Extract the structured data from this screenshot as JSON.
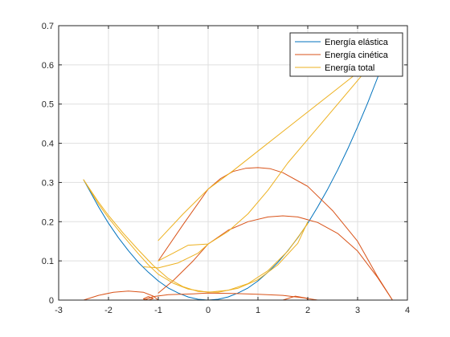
{
  "chart_data": {
    "type": "line",
    "title": "",
    "xlabel": "",
    "ylabel": "",
    "xlim": [
      -3,
      4
    ],
    "ylim": [
      0,
      0.7
    ],
    "grid": true,
    "legend_position": "top-right",
    "x_ticks": [
      -3,
      -2,
      -1,
      0,
      1,
      2,
      3,
      4
    ],
    "x_tick_labels": [
      "-3",
      "-2",
      "-1",
      "0",
      "1",
      "2",
      "3",
      "4"
    ],
    "y_ticks": [
      0,
      0.1,
      0.2,
      0.3,
      0.4,
      0.5,
      0.6,
      0.7
    ],
    "y_tick_labels": [
      "0",
      "0.1",
      "0.2",
      "0.3",
      "0.4",
      "0.5",
      "0.6",
      "0.7"
    ],
    "series": [
      {
        "name": "Energía elástica",
        "color": "#0072bd",
        "segments": [
          [
            [
              -2.5,
              0.307
            ],
            [
              -2.2,
              0.238
            ],
            [
              -2.0,
              0.196
            ],
            [
              -1.8,
              0.159
            ],
            [
              -1.6,
              0.126
            ],
            [
              -1.4,
              0.096
            ],
            [
              -1.2,
              0.071
            ],
            [
              -1.0,
              0.049
            ],
            [
              -0.8,
              0.031
            ],
            [
              -0.6,
              0.018
            ],
            [
              -0.4,
              0.008
            ],
            [
              -0.2,
              0.002
            ],
            [
              0.0,
              0.0
            ],
            [
              0.2,
              0.002
            ],
            [
              0.4,
              0.008
            ],
            [
              0.6,
              0.018
            ],
            [
              0.8,
              0.031
            ],
            [
              1.0,
              0.049
            ],
            [
              1.2,
              0.071
            ],
            [
              1.4,
              0.096
            ],
            [
              1.6,
              0.126
            ],
            [
              1.8,
              0.159
            ],
            [
              2.0,
              0.196
            ],
            [
              2.2,
              0.238
            ],
            [
              2.4,
              0.283
            ],
            [
              2.6,
              0.332
            ],
            [
              2.8,
              0.385
            ],
            [
              3.0,
              0.442
            ],
            [
              3.2,
              0.502
            ],
            [
              3.4,
              0.567
            ],
            [
              3.6,
              0.636
            ],
            [
              3.72,
              0.68
            ]
          ]
        ]
      },
      {
        "name": "Energía cinética",
        "color": "#d95319",
        "segments": [
          [
            [
              -1.0,
              0.1
            ],
            [
              -0.5,
              0.193
            ],
            [
              0.0,
              0.283
            ],
            [
              0.25,
              0.31
            ],
            [
              0.5,
              0.328
            ],
            [
              0.75,
              0.336
            ],
            [
              1.0,
              0.338
            ],
            [
              1.25,
              0.335
            ],
            [
              1.5,
              0.325
            ],
            [
              2.0,
              0.29
            ],
            [
              2.5,
              0.228
            ],
            [
              3.0,
              0.15
            ],
            [
              3.4,
              0.06
            ],
            [
              3.7,
              0.0
            ]
          ],
          [
            [
              -1.0,
              0.018
            ],
            [
              -0.7,
              0.05
            ],
            [
              -0.3,
              0.1
            ],
            [
              0.0,
              0.143
            ],
            [
              0.4,
              0.178
            ],
            [
              0.8,
              0.2
            ],
            [
              1.2,
              0.212
            ],
            [
              1.5,
              0.215
            ],
            [
              1.8,
              0.212
            ],
            [
              2.2,
              0.198
            ],
            [
              2.6,
              0.17
            ],
            [
              3.0,
              0.125
            ],
            [
              3.4,
              0.058
            ],
            [
              3.7,
              0.0
            ]
          ],
          [
            [
              -2.5,
              0.0
            ],
            [
              -2.2,
              0.012
            ],
            [
              -1.9,
              0.02
            ],
            [
              -1.6,
              0.023
            ],
            [
              -1.3,
              0.02
            ],
            [
              -1.1,
              0.01
            ],
            [
              -1.0,
              0.0
            ]
          ],
          [
            [
              -1.3,
              0.0
            ],
            [
              -1.1,
              0.009
            ],
            [
              -0.8,
              0.014
            ],
            [
              -0.3,
              0.016
            ],
            [
              0.0,
              0.018
            ],
            [
              0.5,
              0.017
            ],
            [
              1.0,
              0.015
            ],
            [
              1.5,
              0.012
            ],
            [
              1.9,
              0.006
            ],
            [
              2.2,
              0.0
            ]
          ],
          [
            [
              -1.3,
              0.003
            ],
            [
              -1.2,
              0.009
            ],
            [
              -1.1,
              0.004
            ],
            [
              -1.2,
              0.0
            ],
            [
              -1.3,
              0.003
            ]
          ],
          [
            [
              1.5,
              0.0
            ],
            [
              1.75,
              0.01
            ],
            [
              1.98,
              0.005
            ],
            [
              2.0,
              0.0
            ]
          ]
        ]
      },
      {
        "name": "Energía total",
        "color": "#edb120",
        "segments": [
          [
            [
              -2.5,
              0.307
            ],
            [
              -2.2,
              0.245
            ],
            [
              -2.0,
              0.21
            ],
            [
              -1.8,
              0.178
            ],
            [
              -1.6,
              0.148
            ],
            [
              -1.4,
              0.118
            ],
            [
              -1.2,
              0.09
            ],
            [
              -1.0,
              0.066
            ],
            [
              -0.7,
              0.043
            ],
            [
              -0.4,
              0.028
            ],
            [
              0.0,
              0.02
            ],
            [
              0.4,
              0.025
            ],
            [
              0.8,
              0.042
            ],
            [
              1.2,
              0.075
            ],
            [
              1.6,
              0.125
            ],
            [
              2.0,
              0.195
            ]
          ],
          [
            [
              -2.5,
              0.307
            ],
            [
              -2.2,
              0.25
            ],
            [
              -2.0,
              0.216
            ],
            [
              -1.7,
              0.17
            ],
            [
              -1.4,
              0.128
            ],
            [
              -1.1,
              0.088
            ],
            [
              -0.8,
              0.055
            ],
            [
              -0.5,
              0.034
            ],
            [
              -0.2,
              0.022
            ],
            [
              0.2,
              0.02
            ],
            [
              0.6,
              0.03
            ],
            [
              1.0,
              0.052
            ],
            [
              1.4,
              0.09
            ],
            [
              1.8,
              0.145
            ],
            [
              2.0,
              0.2
            ]
          ],
          [
            [
              -1.0,
              0.152
            ],
            [
              -0.5,
              0.22
            ],
            [
              0.0,
              0.283
            ],
            [
              0.5,
              0.33
            ],
            [
              1.0,
              0.38
            ],
            [
              1.5,
              0.43
            ],
            [
              2.0,
              0.48
            ],
            [
              2.5,
              0.53
            ],
            [
              3.0,
              0.58
            ],
            [
              3.5,
              0.635
            ],
            [
              3.7,
              0.66
            ]
          ],
          [
            [
              -1.0,
              0.1
            ],
            [
              -0.7,
              0.12
            ],
            [
              -0.4,
              0.14
            ],
            [
              0.0,
              0.143
            ],
            [
              0.4,
              0.175
            ],
            [
              0.8,
              0.22
            ],
            [
              1.2,
              0.28
            ],
            [
              1.6,
              0.35
            ],
            [
              2.0,
              0.41
            ],
            [
              2.4,
              0.47
            ],
            [
              2.8,
              0.53
            ],
            [
              3.2,
              0.59
            ],
            [
              3.6,
              0.66
            ],
            [
              3.7,
              0.68
            ]
          ],
          [
            [
              -1.3,
              0.085
            ],
            [
              -1.0,
              0.082
            ],
            [
              -0.6,
              0.095
            ],
            [
              -0.2,
              0.12
            ],
            [
              0.0,
              0.143
            ]
          ]
        ]
      }
    ]
  }
}
